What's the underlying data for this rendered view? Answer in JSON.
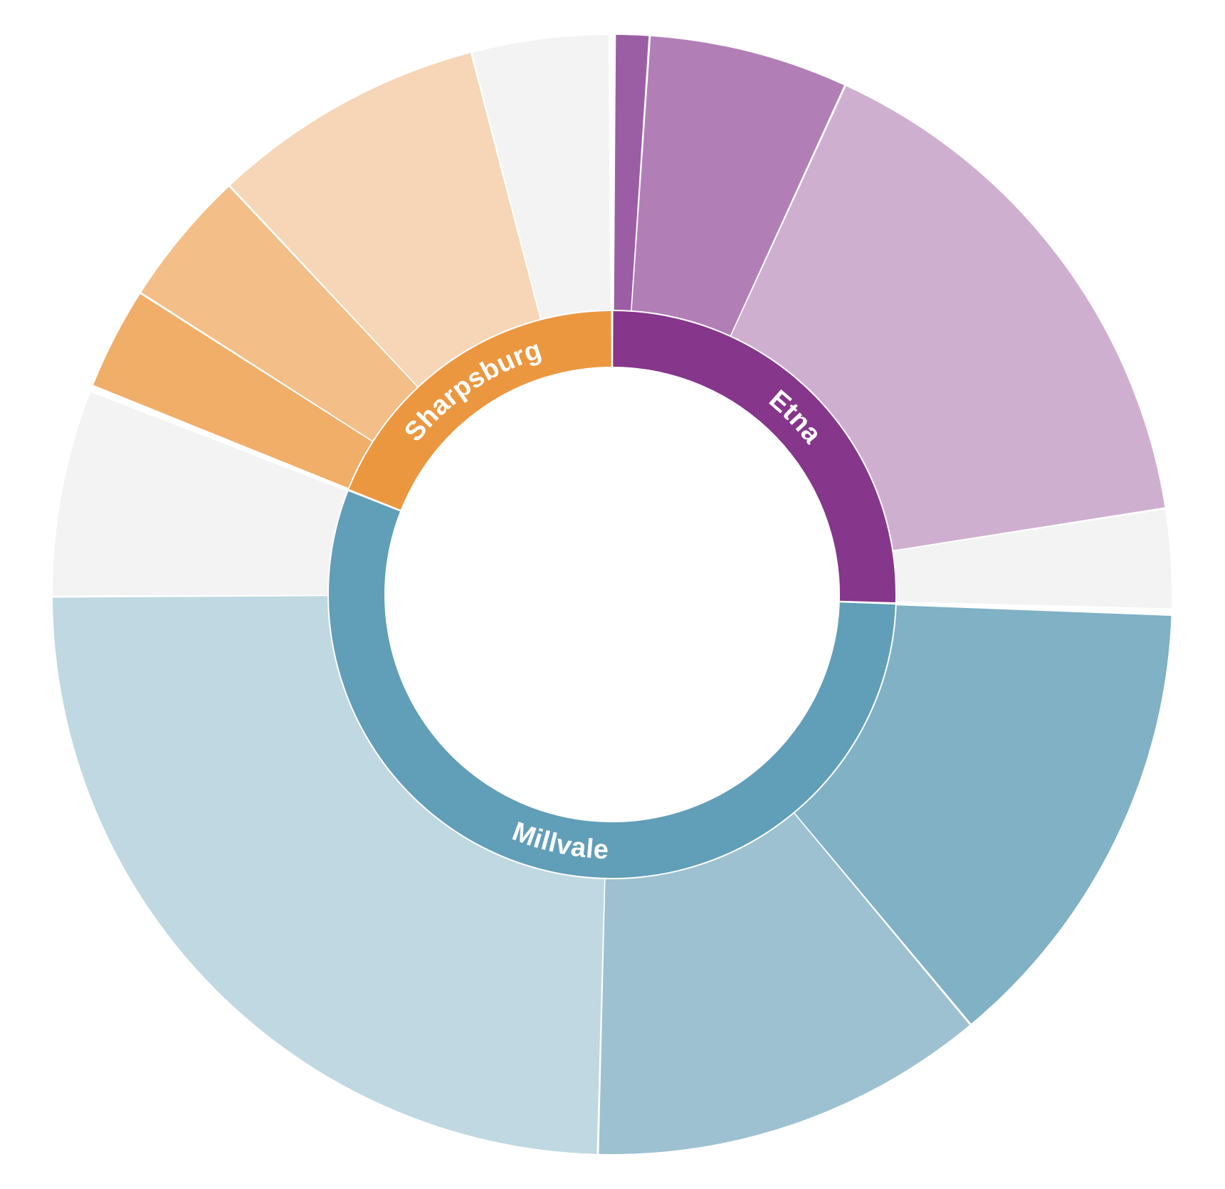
{
  "chart_data": {
    "type": "sunburst",
    "inner_ring": [
      {
        "name": "Etna",
        "value": 25.5,
        "color": "#86368b",
        "label": "Etna"
      },
      {
        "name": "Millvale",
        "value": 55.5,
        "color": "#619eb8",
        "label": "Millvale"
      },
      {
        "name": "Sharpsburg",
        "value": 19.0,
        "color": "#eb9740",
        "label": "Sharpsburg"
      }
    ],
    "outer_ring": [
      {
        "parent": "Etna",
        "value": 1.0,
        "color": "#9b5ea5"
      },
      {
        "parent": "Etna",
        "value": 5.8,
        "color": "#b17fb6"
      },
      {
        "parent": "Etna",
        "value": 15.8,
        "color": "#cfafd0"
      },
      {
        "parent": "Etna",
        "value": 2.9,
        "color": "#f3f3f3"
      },
      {
        "parent": "Millvale",
        "value": 13.4,
        "color": "#80b1c5"
      },
      {
        "parent": "Millvale",
        "value": 11.5,
        "color": "#9dc1d1"
      },
      {
        "parent": "Millvale",
        "value": 24.6,
        "color": "#bfd8e1"
      },
      {
        "parent": "Millvale",
        "value": 6.0,
        "color": "#f3f3f3"
      },
      {
        "parent": "Sharpsburg",
        "value": 3.0,
        "color": "#f0ae69"
      },
      {
        "parent": "Sharpsburg",
        "value": 4.0,
        "color": "#f3be88"
      },
      {
        "parent": "Sharpsburg",
        "value": 8.0,
        "color": "#f6d6b6"
      },
      {
        "parent": "Sharpsburg",
        "value": 4.0,
        "color": "#f3f3f3"
      }
    ]
  }
}
